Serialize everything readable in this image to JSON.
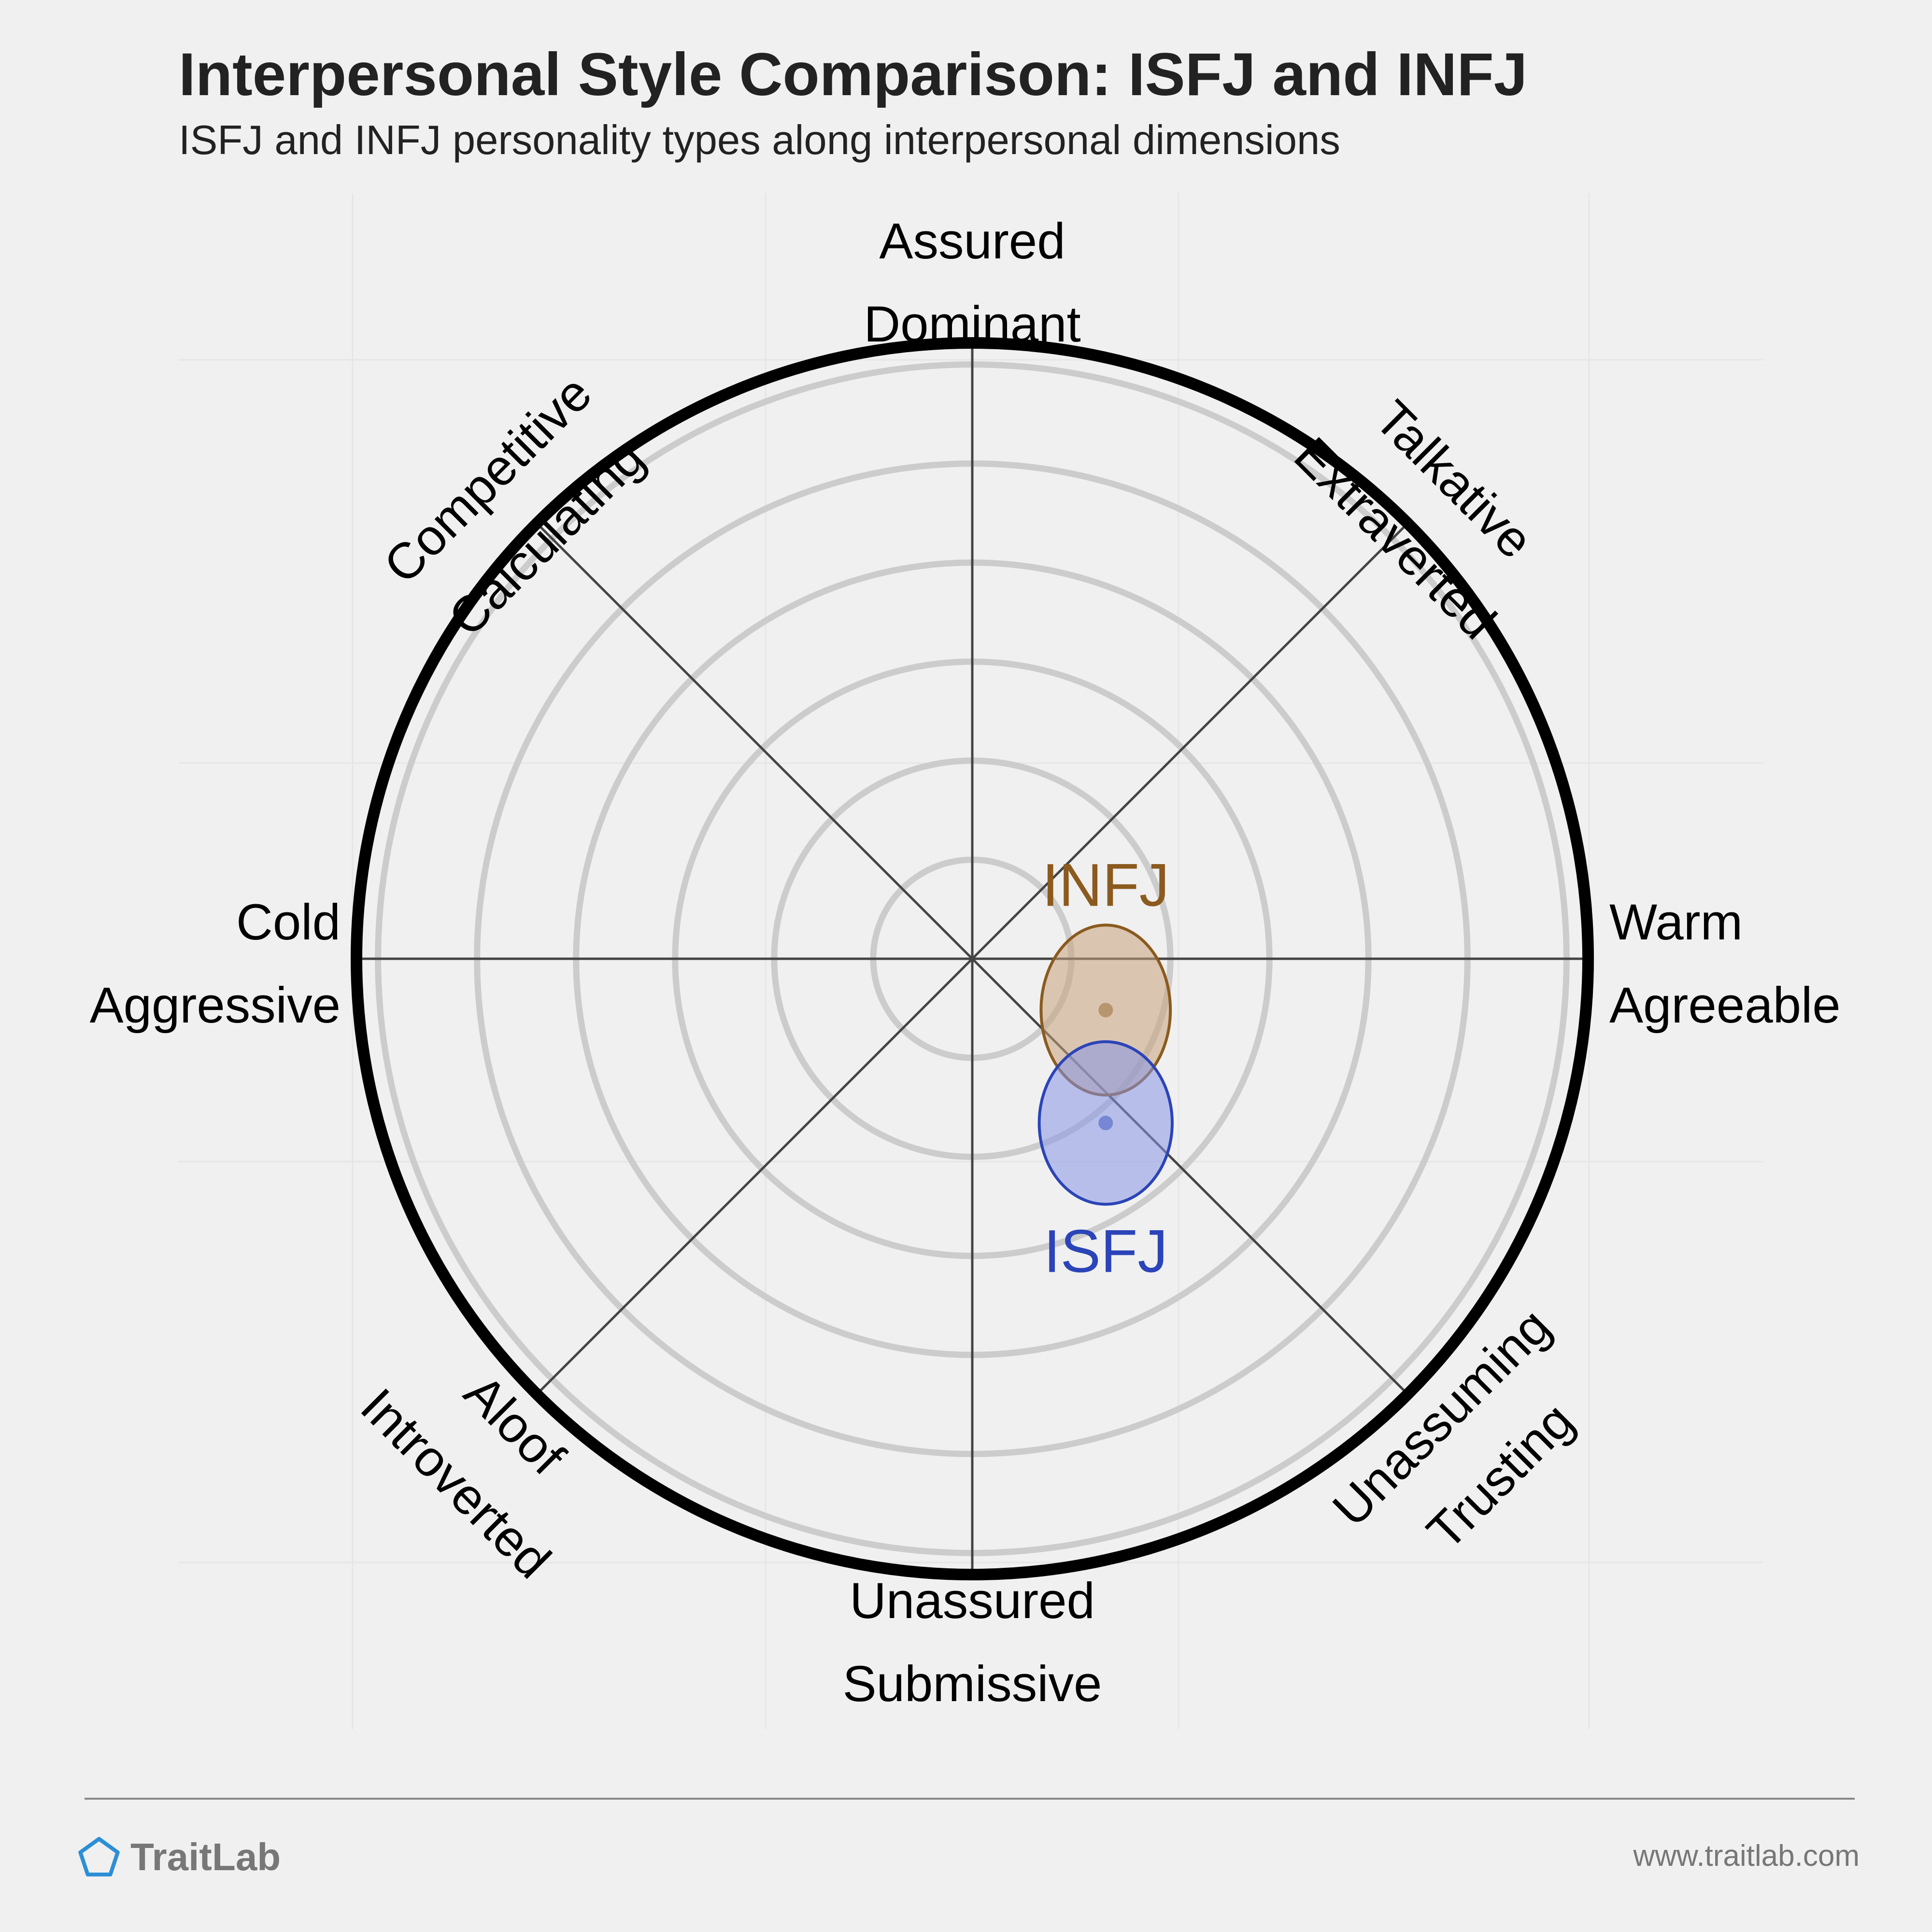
{
  "header": {
    "title": "Interpersonal Style Comparison: ISFJ and INFJ",
    "subtitle": "ISFJ and INFJ personality types along interpersonal dimensions"
  },
  "chart_data": {
    "type": "scatter",
    "title": "Interpersonal Style Comparison: ISFJ and INFJ",
    "subtitle": "ISFJ and INFJ personality types along interpersonal dimensions",
    "axes": [
      {
        "name": "top",
        "lines": [
          "Assured",
          "Dominant"
        ]
      },
      {
        "name": "top-right",
        "lines": [
          "Talkative",
          "Extraverted"
        ]
      },
      {
        "name": "right",
        "lines": [
          "Warm",
          "Agreeable"
        ]
      },
      {
        "name": "bottom-right",
        "lines": [
          "Unassuming",
          "Trusting"
        ]
      },
      {
        "name": "bottom",
        "lines": [
          "Unassured",
          "Submissive"
        ]
      },
      {
        "name": "bottom-left",
        "lines": [
          "Aloof",
          "Introverted"
        ]
      },
      {
        "name": "left",
        "lines": [
          "Cold",
          "Aggressive"
        ]
      },
      {
        "name": "top-left",
        "lines": [
          "Competitive",
          "Calculating"
        ]
      }
    ],
    "range": [
      -6,
      6
    ],
    "ring_count": 6,
    "grid": true,
    "series": [
      {
        "name": "INFJ",
        "color": "#8b5a1e",
        "fill": "#c8a27c",
        "x": 1.3,
        "y": -0.5,
        "sx": 1.75,
        "sy": 2.3
      },
      {
        "name": "ISFJ",
        "color": "#2b44b8",
        "fill": "#8895e6",
        "x": 1.3,
        "y": -1.6,
        "sx": 1.8,
        "sy": 2.2
      }
    ]
  },
  "footer": {
    "brand": "TraitLab",
    "website": "www.traitlab.com"
  }
}
